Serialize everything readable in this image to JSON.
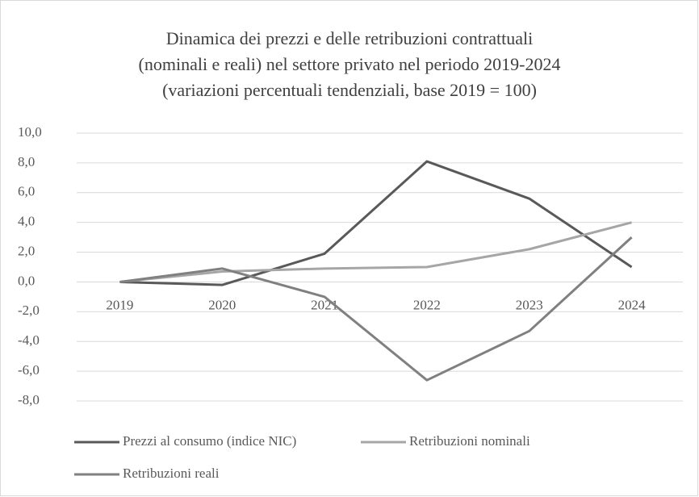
{
  "chart_data": {
    "type": "line",
    "title": [
      "Dinamica dei prezzi e delle retribuzioni contrattuali",
      "(nominali e reali) nel settore privato nel periodo 2019-2024",
      "(variazioni percentuali tendenziali, base 2019 = 100)"
    ],
    "categories": [
      "2019",
      "2020",
      "2021",
      "2022",
      "2023",
      "2024"
    ],
    "series": [
      {
        "name": "Prezzi al consumo (indice NIC)",
        "color": "#595959",
        "values": [
          0,
          -0.2,
          1.9,
          8.1,
          5.6,
          1.0
        ]
      },
      {
        "name": "Retribuzioni nominali",
        "color": "#a6a6a6",
        "values": [
          0,
          0.7,
          0.9,
          1.0,
          2.2,
          4.0
        ]
      },
      {
        "name": "Retribuzioni reali",
        "color": "#808080",
        "values": [
          0,
          0.9,
          -1.0,
          -6.6,
          -3.3,
          3.0
        ]
      }
    ],
    "ylim": [
      -8,
      10
    ],
    "yticks": [
      {
        "value": 10,
        "label": "10,0"
      },
      {
        "value": 8,
        "label": "8,0"
      },
      {
        "value": 6,
        "label": "6,0"
      },
      {
        "value": 4,
        "label": "4,0"
      },
      {
        "value": 2,
        "label": "2,0"
      },
      {
        "value": 0,
        "label": "0,0"
      },
      {
        "value": -2,
        "label": "-2,0"
      },
      {
        "value": -4,
        "label": "-4,0"
      },
      {
        "value": -6,
        "label": "-6,0"
      },
      {
        "value": -8,
        "label": "-8,0"
      }
    ],
    "grid": true,
    "legend": "bottom"
  }
}
